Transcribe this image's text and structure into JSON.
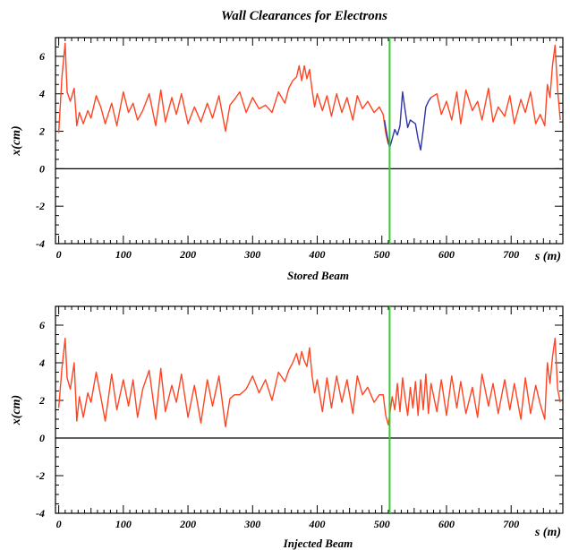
{
  "title": "Wall Clearances for Electrons",
  "colors": {
    "main_line": "#ff4422",
    "highlight_line": "#3333aa",
    "marker_line": "#33cc33",
    "axis": "#000000",
    "zero_line": "#000000"
  },
  "chart_data": [
    {
      "type": "line",
      "title": "",
      "xlabel": "s (m)",
      "ylabel": "x(cm)",
      "caption": "Stored Beam",
      "xlim": [
        -5,
        780
      ],
      "ylim": [
        -4,
        7
      ],
      "x_ticks": [
        0,
        100,
        200,
        300,
        400,
        500,
        600,
        700
      ],
      "y_ticks": [
        6,
        4,
        2,
        0,
        -2,
        -4
      ],
      "marker_x": 512,
      "zero_line": 0,
      "series": [
        {
          "color": "#ff4422",
          "x": [
            0,
            5,
            10,
            13,
            18,
            24,
            28,
            32,
            38,
            45,
            50,
            58,
            65,
            72,
            82,
            90,
            100,
            108,
            115,
            122,
            130,
            140,
            150,
            158,
            165,
            175,
            182,
            190,
            200,
            210,
            220,
            230,
            238,
            248,
            258,
            265,
            272,
            280,
            290,
            300,
            310,
            320,
            330,
            340,
            350,
            356,
            362,
            368,
            372,
            376,
            380,
            384,
            388,
            392,
            396,
            400,
            408,
            415,
            422,
            430,
            438,
            446,
            455,
            462,
            470,
            478,
            488,
            496,
            502,
            506,
            510
          ],
          "y": [
            1.9,
            4.9,
            6.7,
            4.1,
            3.6,
            4.3,
            2.3,
            3.0,
            2.4,
            3.1,
            2.7,
            3.9,
            3.3,
            2.4,
            3.5,
            2.3,
            4.1,
            3.0,
            3.5,
            2.6,
            3.1,
            4.0,
            2.3,
            4.2,
            2.5,
            3.8,
            2.9,
            4.0,
            2.4,
            3.3,
            2.5,
            3.5,
            2.7,
            3.9,
            2.0,
            3.4,
            3.7,
            4.1,
            3.0,
            3.8,
            3.2,
            3.4,
            3.0,
            4.1,
            3.5,
            4.3,
            4.7,
            4.9,
            5.5,
            4.7,
            5.5,
            4.8,
            5.3,
            4.2,
            3.3,
            4.0,
            3.1,
            3.9,
            2.8,
            4.0,
            3.0,
            3.8,
            2.6,
            3.9,
            3.2,
            3.6,
            3.0,
            3.3,
            2.9,
            1.9,
            1.3
          ]
        },
        {
          "color": "#3333aa",
          "x": [
            504,
            508,
            512,
            516,
            520,
            524,
            528,
            532,
            536,
            540,
            544,
            548,
            552,
            556,
            560,
            564,
            568,
            572,
            576
          ],
          "y": [
            2.6,
            1.8,
            1.1,
            1.6,
            2.1,
            1.8,
            2.3,
            4.1,
            3.1,
            2.2,
            2.6,
            2.5,
            2.4,
            1.6,
            1.0,
            2.1,
            3.3,
            3.6,
            3.8
          ]
        },
        {
          "color": "#ff4422",
          "x": [
            576,
            585,
            592,
            600,
            608,
            616,
            622,
            630,
            640,
            648,
            655,
            665,
            672,
            680,
            690,
            698,
            705,
            715,
            722,
            730,
            738,
            745,
            752,
            756,
            760,
            764,
            768,
            772,
            776
          ],
          "y": [
            3.8,
            4.0,
            2.9,
            3.6,
            2.6,
            4.1,
            2.4,
            4.2,
            3.1,
            3.6,
            2.6,
            4.3,
            2.5,
            3.3,
            2.8,
            3.9,
            2.4,
            3.7,
            3.0,
            4.1,
            2.4,
            2.9,
            2.3,
            4.5,
            3.8,
            5.5,
            6.6,
            4.2,
            2.6
          ]
        }
      ]
    },
    {
      "type": "line",
      "title": "",
      "xlabel": "s (m)",
      "ylabel": "x(cm)",
      "caption": "Injected Beam",
      "xlim": [
        -5,
        780
      ],
      "ylim": [
        -4,
        7
      ],
      "x_ticks": [
        0,
        100,
        200,
        300,
        400,
        500,
        600,
        700
      ],
      "y_ticks": [
        6,
        4,
        2,
        0,
        -2,
        -4
      ],
      "marker_x": 512,
      "zero_line": 0,
      "series": [
        {
          "color": "#ff4422",
          "x": [
            0,
            5,
            10,
            13,
            18,
            24,
            28,
            32,
            38,
            45,
            50,
            58,
            65,
            72,
            82,
            90,
            100,
            108,
            115,
            122,
            130,
            140,
            150,
            158,
            165,
            175,
            182,
            190,
            200,
            210,
            220,
            230,
            238,
            248,
            258,
            265,
            272,
            280,
            290,
            300,
            310,
            320,
            330,
            340,
            350,
            356,
            362,
            368,
            372,
            376,
            380,
            384,
            388,
            392,
            396,
            400,
            408,
            415,
            422,
            430,
            438,
            446,
            455,
            462,
            470,
            478,
            488,
            496,
            502,
            506,
            510,
            512,
            516,
            520,
            524,
            528,
            532,
            536,
            540,
            544,
            548,
            552,
            556,
            560,
            564,
            568,
            572,
            576,
            585,
            592,
            600,
            608,
            616,
            622,
            630,
            640,
            648,
            655,
            665,
            672,
            680,
            690,
            698,
            705,
            715,
            722,
            730,
            738,
            745,
            752,
            756,
            760,
            764,
            768,
            772,
            776
          ],
          "y": [
            1.6,
            3.7,
            5.3,
            3.2,
            2.6,
            4.0,
            0.9,
            2.2,
            1.1,
            2.4,
            1.9,
            3.5,
            2.2,
            0.9,
            3.4,
            1.5,
            3.1,
            1.7,
            3.1,
            1.1,
            2.6,
            3.6,
            1.0,
            3.7,
            1.4,
            2.8,
            1.9,
            3.4,
            1.1,
            2.8,
            0.8,
            3.1,
            1.7,
            3.3,
            0.6,
            2.1,
            2.3,
            2.3,
            2.6,
            3.3,
            2.4,
            3.1,
            2.0,
            3.5,
            3.0,
            3.6,
            4.0,
            4.5,
            3.9,
            4.6,
            4.1,
            3.8,
            4.8,
            3.3,
            2.4,
            3.1,
            1.4,
            3.2,
            1.6,
            3.3,
            1.9,
            3.1,
            1.3,
            3.3,
            2.3,
            2.7,
            1.9,
            2.3,
            2.3,
            1.2,
            0.7,
            1.2,
            2.2,
            1.5,
            2.9,
            1.4,
            3.2,
            2.1,
            1.2,
            2.7,
            1.6,
            3.0,
            1.2,
            3.1,
            1.5,
            3.4,
            1.3,
            2.9,
            1.4,
            3.1,
            1.2,
            3.3,
            1.6,
            3.0,
            1.3,
            2.7,
            1.1,
            3.4,
            1.7,
            2.9,
            1.3,
            3.1,
            1.5,
            2.9,
            1.0,
            3.2,
            1.3,
            2.8,
            1.8,
            1.0,
            4.0,
            2.9,
            4.3,
            5.3,
            2.6,
            1.9
          ]
        }
      ]
    }
  ]
}
